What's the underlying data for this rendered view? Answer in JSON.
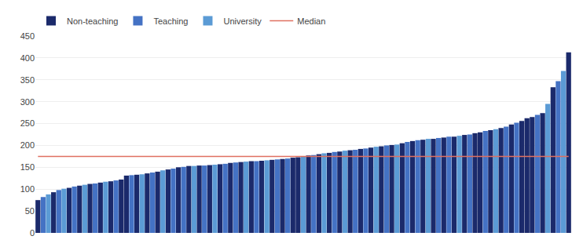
{
  "chart_data": {
    "type": "bar",
    "categories": [
      null,
      null,
      null,
      null,
      null,
      null,
      null,
      null,
      null,
      null,
      null,
      null,
      null,
      null,
      null,
      null,
      null,
      null,
      null,
      null,
      null,
      null,
      null,
      null,
      null,
      null,
      null,
      null,
      null,
      null,
      null,
      null,
      null,
      null,
      null,
      null,
      null,
      null,
      null,
      null,
      null,
      null,
      null,
      null,
      null,
      null,
      null,
      null,
      null,
      null,
      null,
      null,
      null,
      null,
      null,
      null,
      null,
      null,
      null,
      null,
      null,
      null,
      null,
      null,
      null,
      null,
      null,
      null,
      null,
      null,
      null,
      null,
      null,
      null,
      null,
      null,
      null,
      null,
      null,
      null,
      null,
      null,
      null,
      null,
      null,
      null,
      null,
      null,
      null,
      null,
      null,
      null,
      null,
      null,
      null,
      null,
      null,
      null,
      null,
      null,
      null,
      null,
      null
    ],
    "series": [
      {
        "name": "Non-teaching",
        "color": "#1b2a6b",
        "values": [
          75,
          null,
          null,
          93,
          null,
          null,
          103,
          null,
          108,
          null,
          112,
          null,
          115,
          null,
          118,
          null,
          122,
          131,
          null,
          133,
          null,
          136,
          null,
          140,
          null,
          145,
          null,
          150,
          null,
          153,
          null,
          154,
          null,
          155,
          null,
          157,
          null,
          160,
          null,
          162,
          null,
          164,
          null,
          165,
          null,
          167,
          null,
          169,
          null,
          172,
          173,
          null,
          177,
          null,
          180,
          null,
          183,
          null,
          186,
          null,
          189,
          null,
          192,
          null,
          195,
          null,
          198,
          null,
          201,
          null,
          205,
          null,
          210,
          null,
          213,
          null,
          215,
          null,
          218,
          null,
          220,
          null,
          224,
          null,
          228,
          230,
          null,
          235,
          null,
          240,
          null,
          248,
          null,
          256,
          262,
          265,
          null,
          274,
          null,
          333,
          null,
          null,
          413
        ]
      },
      {
        "name": "Teaching",
        "color": "#4472c4",
        "values": [
          null,
          82,
          null,
          null,
          98,
          null,
          null,
          106,
          null,
          null,
          null,
          113,
          null,
          null,
          null,
          120,
          null,
          null,
          132,
          null,
          null,
          null,
          138,
          null,
          null,
          null,
          147,
          null,
          151,
          null,
          null,
          null,
          154,
          null,
          null,
          null,
          158,
          null,
          161,
          null,
          null,
          null,
          164,
          null,
          null,
          null,
          168,
          null,
          170,
          null,
          null,
          null,
          null,
          178,
          null,
          null,
          null,
          185,
          null,
          null,
          null,
          190,
          null,
          193,
          null,
          null,
          null,
          200,
          null,
          null,
          null,
          208,
          null,
          212,
          null,
          null,
          null,
          217,
          null,
          220,
          null,
          null,
          null,
          225,
          null,
          null,
          233,
          null,
          null,
          null,
          243,
          null,
          252,
          null,
          null,
          null,
          270,
          null,
          null,
          null,
          347,
          null,
          null
        ]
      },
      {
        "name": "University",
        "color": "#5b9bd5",
        "values": [
          null,
          null,
          88,
          null,
          null,
          101,
          null,
          null,
          null,
          110,
          null,
          null,
          null,
          117,
          null,
          null,
          null,
          null,
          null,
          null,
          134,
          null,
          null,
          null,
          143,
          null,
          null,
          null,
          null,
          null,
          153,
          null,
          null,
          null,
          156,
          null,
          null,
          null,
          null,
          null,
          163,
          null,
          null,
          null,
          166,
          null,
          null,
          null,
          null,
          null,
          null,
          175,
          null,
          null,
          null,
          182,
          null,
          null,
          null,
          188,
          null,
          null,
          null,
          null,
          null,
          197,
          null,
          null,
          null,
          202,
          null,
          null,
          null,
          null,
          null,
          215,
          null,
          null,
          null,
          null,
          null,
          222,
          null,
          null,
          null,
          null,
          null,
          null,
          237,
          null,
          null,
          null,
          null,
          null,
          null,
          null,
          null,
          null,
          295,
          null,
          null,
          370,
          null
        ]
      },
      {
        "name": "Median",
        "type": "line",
        "color": "#e07060",
        "values": [
          175,
          175,
          175,
          175,
          175,
          175,
          175,
          175,
          175,
          175,
          175,
          175,
          175,
          175,
          175,
          175,
          175,
          175,
          175,
          175,
          175,
          175,
          175,
          175,
          175,
          175,
          175,
          175,
          175,
          175,
          175,
          175,
          175,
          175,
          175,
          175,
          175,
          175,
          175,
          175,
          175,
          175,
          175,
          175,
          175,
          175,
          175,
          175,
          175,
          175,
          175,
          175,
          175,
          175,
          175,
          175,
          175,
          175,
          175,
          175,
          175,
          175,
          175,
          175,
          175,
          175,
          175,
          175,
          175,
          175,
          175,
          175,
          175,
          175,
          175,
          175,
          175,
          175,
          175,
          175,
          175,
          175,
          175,
          175,
          175,
          175,
          175,
          175,
          175,
          175,
          175,
          175,
          175,
          175,
          175,
          175,
          175,
          175,
          175,
          175,
          175,
          175,
          175
        ]
      }
    ],
    "ylim": [
      0,
      450
    ],
    "yticks": [
      0,
      50,
      100,
      150,
      200,
      250,
      300,
      350,
      400,
      450
    ],
    "grid": true,
    "legend": "upper left",
    "tick_labels": "y"
  }
}
